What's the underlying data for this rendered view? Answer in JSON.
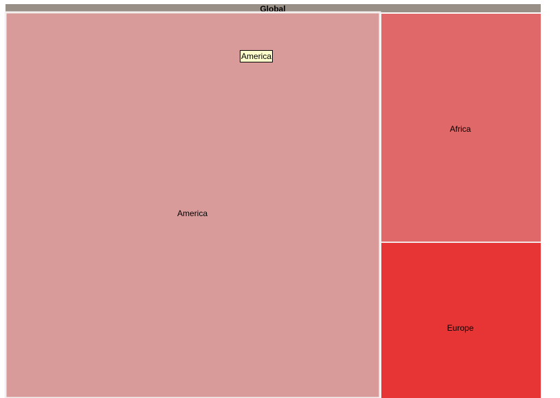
{
  "chart_data": {
    "type": "treemap",
    "root": {
      "name": "Global",
      "color": "#988f86"
    },
    "children": [
      {
        "name": "America",
        "color": "#d99a9a",
        "highlighted": true
      },
      {
        "name": "Africa",
        "color": "#e06868"
      },
      {
        "name": "Europe",
        "color": "#e73535"
      }
    ]
  },
  "tooltip": {
    "text": "America"
  }
}
